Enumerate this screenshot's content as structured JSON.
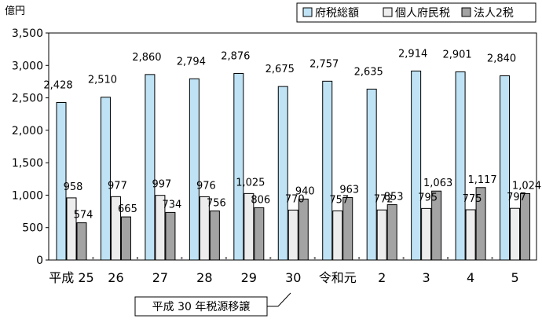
{
  "unit_label": "億円",
  "note": "平成 30 年税源移譲",
  "colors": {
    "府税総額": "#bfe3f5",
    "個人府民税": "#ededed",
    "法人2税": "#a3a3a3",
    "stroke": "#000000"
  },
  "chart_data": {
    "type": "bar",
    "categories": [
      "平成 25",
      "26",
      "27",
      "28",
      "29",
      "30",
      "令和元",
      "2",
      "3",
      "4",
      "5"
    ],
    "series": [
      {
        "name": "府税総額",
        "values": [
          2428,
          2510,
          2860,
          2794,
          2876,
          2675,
          2757,
          2635,
          2914,
          2901,
          2840
        ],
        "labels": [
          "2,428",
          "2,510",
          "2,860",
          "2,794",
          "2,876",
          "2,675",
          "2,757",
          "2,635",
          "2,914",
          "2,901",
          "2,840"
        ]
      },
      {
        "name": "個人府民税",
        "values": [
          958,
          977,
          997,
          976,
          1025,
          770,
          757,
          772,
          795,
          775,
          797
        ],
        "labels": [
          "958",
          "977",
          "997",
          "976",
          "1,025",
          "770",
          "757",
          "772",
          "795",
          "775",
          "797"
        ]
      },
      {
        "name": "法人2税",
        "values": [
          574,
          665,
          734,
          756,
          806,
          940,
          963,
          853,
          1063,
          1117,
          1024
        ],
        "labels": [
          "574",
          "665",
          "734",
          "756",
          "806",
          "940",
          "963",
          "853",
          "1,063",
          "1,117",
          "1,024"
        ]
      }
    ],
    "ylim": [
      0,
      3500
    ],
    "yticks": [
      0,
      500,
      1000,
      1500,
      2000,
      2500,
      3000,
      3500
    ],
    "ytick_labels": [
      "0",
      "500",
      "1,000",
      "1,500",
      "2,000",
      "2,500",
      "3,000",
      "3,500"
    ],
    "grid": false,
    "legend_position": "top-right"
  }
}
